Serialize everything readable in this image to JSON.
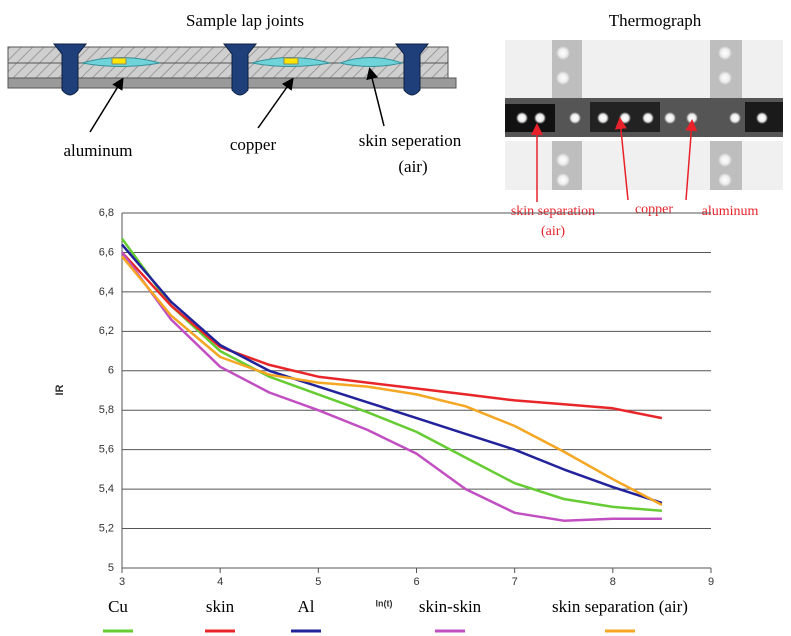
{
  "diagram": {
    "title": "Sample lap joints",
    "labels": [
      "aluminum",
      "copper",
      "skin seperation",
      "(air)"
    ]
  },
  "thermograph": {
    "title": "Thermograph",
    "labels": [
      "skin separation",
      "(air)",
      "copper",
      "aluminum"
    ]
  },
  "chart_data": {
    "type": "line",
    "y_label": "IR",
    "x_label": "ln(t)",
    "x": [
      3,
      3.5,
      4,
      4.5,
      5,
      5.5,
      6,
      6.5,
      7,
      7.5,
      8,
      8.5
    ],
    "series": [
      {
        "name": "Cu",
        "color": "#66cc33",
        "values": [
          6.67,
          6.33,
          6.1,
          5.97,
          5.88,
          5.79,
          5.69,
          5.56,
          5.43,
          5.35,
          5.31,
          5.29
        ]
      },
      {
        "name": "skin",
        "color": "#e8262a",
        "values": [
          6.6,
          6.33,
          6.12,
          6.03,
          5.97,
          5.94,
          5.91,
          5.88,
          5.85,
          5.83,
          5.81,
          5.76
        ]
      },
      {
        "name": "Al",
        "color": "#22229a",
        "values": [
          6.64,
          6.35,
          6.13,
          6.0,
          5.92,
          5.84,
          5.76,
          5.68,
          5.6,
          5.5,
          5.41,
          5.33
        ]
      },
      {
        "name": "skin-skin",
        "color": "#c14fc1",
        "values": [
          6.6,
          6.26,
          6.02,
          5.89,
          5.8,
          5.7,
          5.58,
          5.4,
          5.28,
          5.24,
          5.25,
          5.25
        ]
      },
      {
        "name": "skin separation (air)",
        "color": "#f5a623",
        "values": [
          6.58,
          6.28,
          6.07,
          5.98,
          5.94,
          5.92,
          5.88,
          5.82,
          5.72,
          5.59,
          5.45,
          5.32
        ]
      }
    ],
    "xlim": [
      3,
      9
    ],
    "xticks": [
      3,
      4,
      5,
      6,
      7,
      8,
      9
    ],
    "ylim": [
      5,
      6.8
    ],
    "yticks": [
      5,
      {
        "value": 5.2,
        "label": "5,2"
      },
      {
        "value": 5.4,
        "label": "5,4"
      },
      {
        "value": 5.6,
        "label": "5,6"
      },
      {
        "value": 5.8,
        "label": "5,8"
      },
      6,
      {
        "value": 6.2,
        "label": "6,2"
      },
      {
        "value": 6.4,
        "label": "6,4"
      },
      {
        "value": 6.6,
        "label": "6,6"
      },
      {
        "value": 6.8,
        "label": "6,8"
      }
    ],
    "grid": true
  }
}
